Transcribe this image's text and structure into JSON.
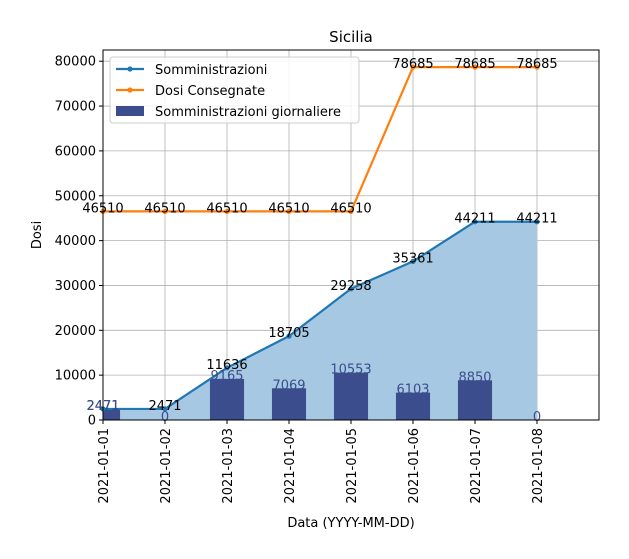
{
  "chart_data": {
    "type": "line",
    "title": "Sicilia",
    "xlabel": "Data (YYYY-MM-DD)",
    "ylabel": "Dosi",
    "x": [
      "2021-01-01",
      "2021-01-02",
      "2021-01-03",
      "2021-01-04",
      "2021-01-05",
      "2021-01-06",
      "2021-01-07",
      "2021-01-08"
    ],
    "xlim": [
      "2021-01-01",
      "2021-01-09"
    ],
    "ylim": [
      0,
      82500
    ],
    "yticks": [
      0,
      10000,
      20000,
      30000,
      40000,
      50000,
      60000,
      70000,
      80000
    ],
    "grid": true,
    "legend_position": "top-left",
    "series": [
      {
        "name": "Somministrazioni",
        "kind": "line",
        "color": "#1f77b4",
        "fill_color": "#a6c8e2",
        "values": [
          2471,
          2471,
          11636,
          18705,
          29258,
          35361,
          44211,
          44211
        ],
        "labels": [
          "2471",
          "2471",
          "11636",
          "18705",
          "29258",
          "35361",
          "44211",
          "44211"
        ]
      },
      {
        "name": "Dosi Consegnate",
        "kind": "line",
        "color": "#ff7f0e",
        "values": [
          46510,
          46510,
          46510,
          46510,
          46510,
          78685,
          78685,
          78685
        ],
        "labels": [
          "46510",
          "46510",
          "46510",
          "46510",
          "46510",
          "78685",
          "78685",
          "78685"
        ]
      },
      {
        "name": "Somministrazioni giornaliere",
        "kind": "bar",
        "color": "#3b4d8c",
        "values": [
          2471,
          0,
          9165,
          7069,
          10553,
          6103,
          8850,
          0
        ],
        "labels": [
          "2471",
          "0",
          "9165",
          "7069",
          "10553",
          "6103",
          "8850",
          "0"
        ]
      }
    ]
  }
}
